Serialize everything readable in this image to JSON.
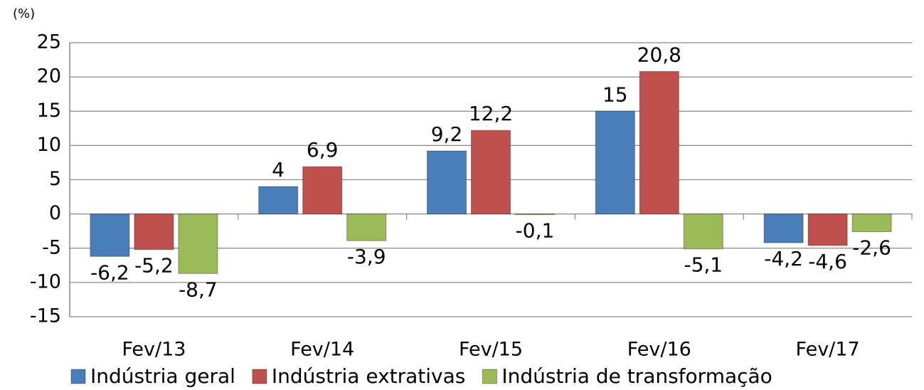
{
  "chart_data": {
    "type": "bar",
    "y_axis_label": "(%)",
    "categories": [
      "Fev/13",
      "Fev/14",
      "Fev/15",
      "Fev/16",
      "Fev/17"
    ],
    "series": [
      {
        "name": "Indústria geral",
        "color": "#4a7ebb",
        "values": [
          -6.2,
          4,
          9.2,
          15,
          -4.2
        ],
        "value_labels": [
          "-6,2",
          "4",
          "9,2",
          "15",
          "-4,2"
        ]
      },
      {
        "name": "Indústria extrativas",
        "color": "#c0504d",
        "values": [
          -5.2,
          6.9,
          12.2,
          20.8,
          -4.6
        ],
        "value_labels": [
          "-5,2",
          "6,9",
          "12,2",
          "20,8",
          "-4,6"
        ]
      },
      {
        "name": "Indústria de transformação",
        "color": "#9bbb59",
        "values": [
          -8.7,
          -3.9,
          -0.1,
          -5.1,
          -2.6
        ],
        "value_labels": [
          "-8,7",
          "-3,9",
          "-0,1",
          "-5,1",
          "-2,6"
        ]
      }
    ],
    "ylim": [
      -15,
      25
    ],
    "yticks": [
      -15,
      -10,
      -5,
      0,
      5,
      10,
      15,
      20,
      25
    ],
    "grid": true,
    "legend": "bottom"
  }
}
